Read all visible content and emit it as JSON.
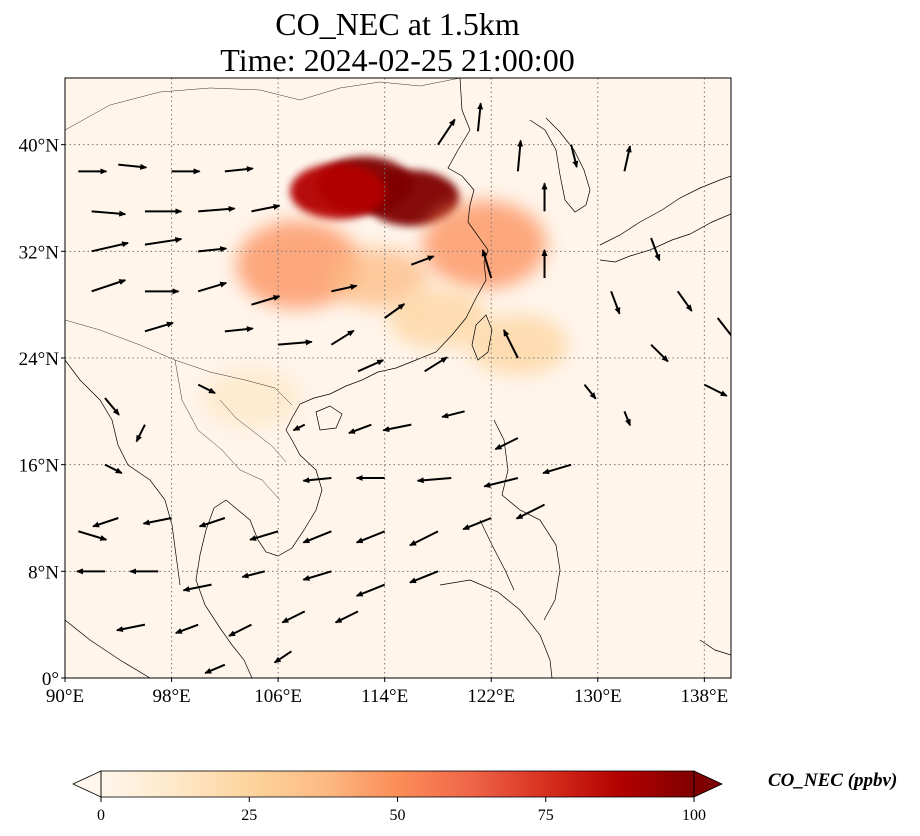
{
  "title": {
    "line1": "CO_NEC at 1.5km",
    "line2": "Time: 2024-02-25 21:00:00"
  },
  "map": {
    "lon_range": [
      90,
      140
    ],
    "lat_range": [
      0,
      45
    ],
    "lon_ticks": [
      "90°E",
      "98°E",
      "106°E",
      "114°E",
      "122°E",
      "130°E",
      "138°E"
    ],
    "lat_ticks": [
      "0°",
      "8°N",
      "16°N",
      "24°N",
      "32°N",
      "40°N"
    ],
    "lon_tick_values": [
      90,
      98,
      106,
      114,
      122,
      130,
      138
    ],
    "lat_tick_values": [
      0,
      8,
      16,
      24,
      32,
      40
    ],
    "gridlines": "dotted",
    "background_color": "#fff5eb"
  },
  "colorbar": {
    "label": "CO_NEC (ppbv)",
    "ticks": [
      "0",
      "25",
      "50",
      "75",
      "100"
    ],
    "tick_values": [
      0,
      25,
      50,
      75,
      100
    ],
    "range": [
      0,
      100
    ],
    "extend": "both",
    "colormap": "OrRd",
    "colors": [
      "#fff7ec",
      "#fee8c8",
      "#fdd49e",
      "#fdbb84",
      "#fc8d59",
      "#ef6548",
      "#d7301f",
      "#b30000",
      "#7f0000"
    ]
  },
  "chart_data": {
    "type": "heatmap",
    "title": "CO_NEC at 1.5km",
    "subtitle": "Time: 2024-02-25 21:00:00",
    "xlabel": "",
    "ylabel": "",
    "xlim": [
      90,
      140
    ],
    "ylim": [
      0,
      45
    ],
    "value_label": "CO_NEC (ppbv)",
    "concentration_regions": [
      {
        "lon": 112.5,
        "lat": 37.0,
        "value": 100
      },
      {
        "lon": 116.0,
        "lat": 36.0,
        "value": 95
      },
      {
        "lon": 110.5,
        "lat": 36.5,
        "value": 85
      },
      {
        "lon": 107.5,
        "lat": 31.0,
        "value": 55
      },
      {
        "lon": 113.5,
        "lat": 30.0,
        "value": 40
      },
      {
        "lon": 121.5,
        "lat": 32.5,
        "value": 45
      },
      {
        "lon": 124.0,
        "lat": 25.0,
        "value": 30
      },
      {
        "lon": 118.0,
        "lat": 27.0,
        "value": 25
      },
      {
        "lon": 104.0,
        "lat": 21.0,
        "value": 15
      }
    ],
    "wind_vectors": [
      {
        "lon": 91,
        "lat": 38,
        "u": 1.0,
        "v": 0.0
      },
      {
        "lon": 94,
        "lat": 38.5,
        "u": 1.0,
        "v": -0.1
      },
      {
        "lon": 98,
        "lat": 38,
        "u": 1.0,
        "v": 0.0
      },
      {
        "lon": 102,
        "lat": 38,
        "u": 1.0,
        "v": 0.1
      },
      {
        "lon": 92,
        "lat": 35,
        "u": 1.2,
        "v": -0.1
      },
      {
        "lon": 96,
        "lat": 35,
        "u": 1.3,
        "v": 0.0
      },
      {
        "lon": 100,
        "lat": 35,
        "u": 1.3,
        "v": 0.1
      },
      {
        "lon": 104,
        "lat": 35,
        "u": 1.0,
        "v": 0.2
      },
      {
        "lon": 92,
        "lat": 32,
        "u": 1.3,
        "v": 0.3
      },
      {
        "lon": 96,
        "lat": 32.5,
        "u": 1.3,
        "v": 0.2
      },
      {
        "lon": 100,
        "lat": 32,
        "u": 1.0,
        "v": 0.1
      },
      {
        "lon": 92,
        "lat": 29,
        "u": 1.2,
        "v": 0.4
      },
      {
        "lon": 96,
        "lat": 29,
        "u": 1.2,
        "v": 0.0
      },
      {
        "lon": 100,
        "lat": 29,
        "u": 1.0,
        "v": 0.3
      },
      {
        "lon": 104,
        "lat": 28,
        "u": 1.0,
        "v": 0.3
      },
      {
        "lon": 96,
        "lat": 26,
        "u": 1.0,
        "v": 0.3
      },
      {
        "lon": 102,
        "lat": 26,
        "u": 1.0,
        "v": 0.1
      },
      {
        "lon": 106,
        "lat": 25,
        "u": 1.2,
        "v": 0.1
      },
      {
        "lon": 110,
        "lat": 25,
        "u": 0.8,
        "v": 0.5
      },
      {
        "lon": 114,
        "lat": 27,
        "u": 0.7,
        "v": 0.5
      },
      {
        "lon": 116,
        "lat": 31,
        "u": 0.8,
        "v": 0.3
      },
      {
        "lon": 110,
        "lat": 29,
        "u": 0.9,
        "v": 0.2
      },
      {
        "lon": 112,
        "lat": 23,
        "u": 0.9,
        "v": 0.4
      },
      {
        "lon": 117,
        "lat": 23,
        "u": 0.8,
        "v": 0.5
      },
      {
        "lon": 118,
        "lat": 40,
        "u": 0.6,
        "v": 0.9
      },
      {
        "lon": 121,
        "lat": 41,
        "u": 0.1,
        "v": 1.0
      },
      {
        "lon": 124,
        "lat": 38,
        "u": 0.1,
        "v": 1.1
      },
      {
        "lon": 126,
        "lat": 35,
        "u": 0.0,
        "v": 1.0
      },
      {
        "lon": 122,
        "lat": 30,
        "u": -0.3,
        "v": 1.0
      },
      {
        "lon": 126,
        "lat": 30,
        "u": 0.0,
        "v": 1.0
      },
      {
        "lon": 124,
        "lat": 24,
        "u": -0.5,
        "v": 1.0
      },
      {
        "lon": 128,
        "lat": 40,
        "u": 0.2,
        "v": -0.8
      },
      {
        "lon": 132,
        "lat": 38,
        "u": 0.2,
        "v": 0.9
      },
      {
        "lon": 134,
        "lat": 33,
        "u": 0.3,
        "v": -0.8
      },
      {
        "lon": 136,
        "lat": 29,
        "u": 0.5,
        "v": -0.7
      },
      {
        "lon": 139,
        "lat": 27,
        "u": 0.7,
        "v": -0.9
      },
      {
        "lon": 131,
        "lat": 29,
        "u": 0.3,
        "v": -0.8
      },
      {
        "lon": 134,
        "lat": 25,
        "u": 0.6,
        "v": -0.6
      },
      {
        "lon": 138,
        "lat": 22,
        "u": 0.8,
        "v": -0.4
      },
      {
        "lon": 129,
        "lat": 22,
        "u": 0.4,
        "v": -0.5
      },
      {
        "lon": 132,
        "lat": 20,
        "u": 0.2,
        "v": -0.5
      },
      {
        "lon": 120,
        "lat": 20,
        "u": -0.8,
        "v": -0.2
      },
      {
        "lon": 116,
        "lat": 19,
        "u": -1.0,
        "v": -0.2
      },
      {
        "lon": 124,
        "lat": 18,
        "u": -0.8,
        "v": -0.4
      },
      {
        "lon": 128,
        "lat": 16,
        "u": -1.0,
        "v": -0.3
      },
      {
        "lon": 124,
        "lat": 15,
        "u": -1.2,
        "v": -0.3
      },
      {
        "lon": 119,
        "lat": 15,
        "u": -1.2,
        "v": -0.1
      },
      {
        "lon": 114,
        "lat": 15,
        "u": -1.0,
        "v": 0.0
      },
      {
        "lon": 110,
        "lat": 15,
        "u": -1.0,
        "v": -0.1
      },
      {
        "lon": 122,
        "lat": 12,
        "u": -1.0,
        "v": -0.4
      },
      {
        "lon": 126,
        "lat": 13,
        "u": -1.0,
        "v": -0.5
      },
      {
        "lon": 118,
        "lat": 11,
        "u": -1.0,
        "v": -0.5
      },
      {
        "lon": 114,
        "lat": 11,
        "u": -1.0,
        "v": -0.4
      },
      {
        "lon": 110,
        "lat": 11,
        "u": -1.0,
        "v": -0.4
      },
      {
        "lon": 106,
        "lat": 11,
        "u": -1.0,
        "v": -0.3
      },
      {
        "lon": 102,
        "lat": 12,
        "u": -0.9,
        "v": -0.3
      },
      {
        "lon": 98,
        "lat": 12,
        "u": -1.0,
        "v": -0.2
      },
      {
        "lon": 94,
        "lat": 12,
        "u": -0.9,
        "v": -0.3
      },
      {
        "lon": 91,
        "lat": 11,
        "u": 1.0,
        "v": -0.3
      },
      {
        "lon": 93,
        "lat": 8,
        "u": -1.0,
        "v": 0.0
      },
      {
        "lon": 97,
        "lat": 8,
        "u": -1.0,
        "v": 0.0
      },
      {
        "lon": 101,
        "lat": 7,
        "u": -1.0,
        "v": -0.2
      },
      {
        "lon": 105,
        "lat": 8,
        "u": -0.8,
        "v": -0.2
      },
      {
        "lon": 110,
        "lat": 8,
        "u": -1.0,
        "v": -0.3
      },
      {
        "lon": 114,
        "lat": 7,
        "u": -1.0,
        "v": -0.4
      },
      {
        "lon": 118,
        "lat": 8,
        "u": -1.0,
        "v": -0.4
      },
      {
        "lon": 96,
        "lat": 4,
        "u": -1.0,
        "v": -0.2
      },
      {
        "lon": 100,
        "lat": 4,
        "u": -0.8,
        "v": -0.3
      },
      {
        "lon": 104,
        "lat": 4,
        "u": -0.8,
        "v": -0.4
      },
      {
        "lon": 108,
        "lat": 5,
        "u": -0.8,
        "v": -0.4
      },
      {
        "lon": 112,
        "lat": 5,
        "u": -0.8,
        "v": -0.4
      },
      {
        "lon": 102,
        "lat": 1,
        "u": -0.7,
        "v": -0.3
      },
      {
        "lon": 107,
        "lat": 2,
        "u": -0.6,
        "v": -0.4
      },
      {
        "lon": 96,
        "lat": 19,
        "u": -0.3,
        "v": -0.6
      },
      {
        "lon": 100,
        "lat": 22,
        "u": 0.6,
        "v": -0.3
      },
      {
        "lon": 93,
        "lat": 21,
        "u": 0.5,
        "v": -0.6
      },
      {
        "lon": 93,
        "lat": 16,
        "u": 0.6,
        "v": -0.3
      },
      {
        "lon": 108,
        "lat": 19,
        "u": -0.4,
        "v": -0.2
      },
      {
        "lon": 113,
        "lat": 19,
        "u": -0.8,
        "v": -0.3
      }
    ]
  }
}
